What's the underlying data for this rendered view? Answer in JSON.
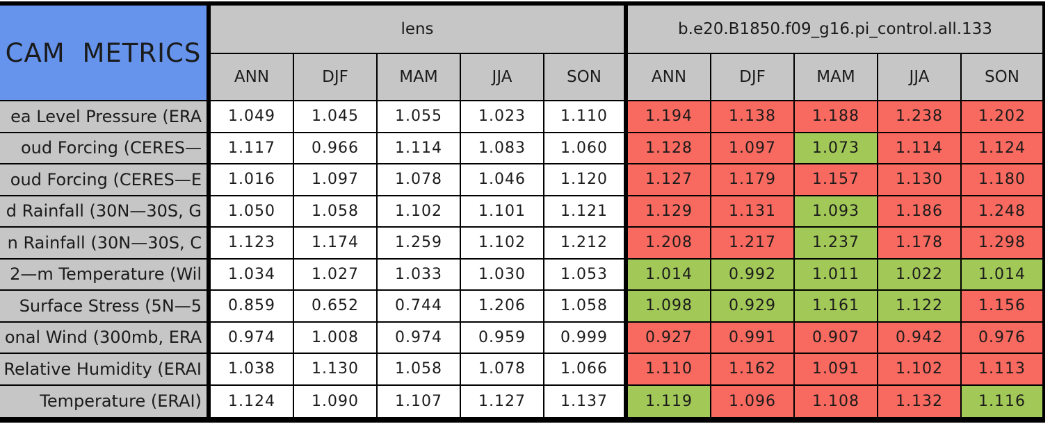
{
  "chart_data": {
    "type": "table",
    "title": "CAM METRICS",
    "column_groups": [
      "lens",
      "b.e20.B1850.f09_g16.pi_control.all.133"
    ],
    "season_columns": [
      "ANN",
      "DJF",
      "MAM",
      "JJA",
      "SON"
    ],
    "rows": [
      {
        "label": "ea Level Pressure (ERA",
        "lens": [
          "1.049",
          "1.045",
          "1.055",
          "1.023",
          "1.110"
        ],
        "control": [
          "1.194",
          "1.138",
          "1.188",
          "1.238",
          "1.202"
        ],
        "control_cell_colors": [
          "red",
          "red",
          "red",
          "red",
          "red"
        ]
      },
      {
        "label": "oud Forcing (CERES—",
        "lens": [
          "1.117",
          "0.966",
          "1.114",
          "1.083",
          "1.060"
        ],
        "control": [
          "1.128",
          "1.097",
          "1.073",
          "1.114",
          "1.124"
        ],
        "control_cell_colors": [
          "red",
          "red",
          "green",
          "red",
          "red"
        ]
      },
      {
        "label": "oud Forcing (CERES—E",
        "lens": [
          "1.016",
          "1.097",
          "1.078",
          "1.046",
          "1.120"
        ],
        "control": [
          "1.127",
          "1.179",
          "1.157",
          "1.130",
          "1.180"
        ],
        "control_cell_colors": [
          "red",
          "red",
          "red",
          "red",
          "red"
        ]
      },
      {
        "label": "d Rainfall (30N—30S, G",
        "lens": [
          "1.050",
          "1.058",
          "1.102",
          "1.101",
          "1.121"
        ],
        "control": [
          "1.129",
          "1.131",
          "1.093",
          "1.186",
          "1.248"
        ],
        "control_cell_colors": [
          "red",
          "red",
          "green",
          "red",
          "red"
        ]
      },
      {
        "label": "n Rainfall (30N—30S, C",
        "lens": [
          "1.123",
          "1.174",
          "1.259",
          "1.102",
          "1.212"
        ],
        "control": [
          "1.208",
          "1.217",
          "1.237",
          "1.178",
          "1.298"
        ],
        "control_cell_colors": [
          "red",
          "red",
          "green",
          "red",
          "red"
        ]
      },
      {
        "label": "2—m Temperature (Wil",
        "lens": [
          "1.034",
          "1.027",
          "1.033",
          "1.030",
          "1.053"
        ],
        "control": [
          "1.014",
          "0.992",
          "1.011",
          "1.022",
          "1.014"
        ],
        "control_cell_colors": [
          "green",
          "green",
          "green",
          "green",
          "green"
        ]
      },
      {
        "label": "Surface Stress (5N—5",
        "lens": [
          "0.859",
          "0.652",
          "0.744",
          "1.206",
          "1.058"
        ],
        "control": [
          "1.098",
          "0.929",
          "1.161",
          "1.122",
          "1.156"
        ],
        "control_cell_colors": [
          "green",
          "green",
          "green",
          "green",
          "red"
        ]
      },
      {
        "label": "onal Wind (300mb, ERA",
        "lens": [
          "0.974",
          "1.008",
          "0.974",
          "0.959",
          "0.999"
        ],
        "control": [
          "0.927",
          "0.991",
          "0.907",
          "0.942",
          "0.976"
        ],
        "control_cell_colors": [
          "red",
          "red",
          "red",
          "red",
          "red"
        ]
      },
      {
        "label": "Relative Humidity (ERAI",
        "lens": [
          "1.038",
          "1.130",
          "1.058",
          "1.078",
          "1.066"
        ],
        "control": [
          "1.110",
          "1.162",
          "1.091",
          "1.102",
          "1.113"
        ],
        "control_cell_colors": [
          "red",
          "red",
          "red",
          "red",
          "red"
        ]
      },
      {
        "label": "Temperature (ERAI)",
        "lens": [
          "1.124",
          "1.090",
          "1.107",
          "1.127",
          "1.137"
        ],
        "control": [
          "1.119",
          "1.096",
          "1.108",
          "1.132",
          "1.116"
        ],
        "control_cell_colors": [
          "green",
          "red",
          "red",
          "red",
          "green"
        ]
      }
    ]
  },
  "colors": {
    "header_blue": "#6694ED",
    "header_grey": "#C6C6C6",
    "cell_red": "#F8695F",
    "cell_green": "#A2C857",
    "lens_cell_white": "#FFFFFF",
    "border_black": "#000000"
  }
}
